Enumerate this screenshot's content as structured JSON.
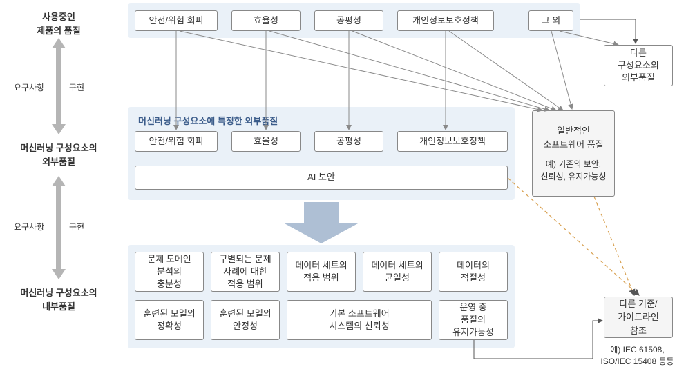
{
  "colors": {
    "panel_bg": "#eaf1f8",
    "panel_title": "#3b5c8a",
    "box_border": "#888888",
    "box_bg": "#ffffff",
    "right_bg": "#f5f5f5",
    "arrow_gray": "#b5b5b5",
    "wire_gray": "#8a8a8a",
    "orange_dash": "#d8a050",
    "dark_line": "#0a2a4a",
    "text": "#333333",
    "big_arrow_fill": "#aebfd4"
  },
  "layerLabels": {
    "top": "사용중인\n제품의 품질",
    "mid": "머신러닝 구성요소의\n외부품질",
    "bot": "머신러닝 구성요소의\n내부품질"
  },
  "bidir": {
    "req": "요구사항",
    "impl": "구현"
  },
  "topRow": {
    "a": "안전/위험 회피",
    "b": "효율성",
    "c": "공평성",
    "d": "개인정보보호정책",
    "e": "그 외"
  },
  "midPanel": {
    "title": "머신러닝 구성요소에 특정한 외부품질",
    "a": "안전/위험 회피",
    "b": "효율성",
    "c": "공평성",
    "d": "개인정보보호정책",
    "full": "AI 보안"
  },
  "botPanel": {
    "r1c1": "문제 도메인\n분석의\n충분성",
    "r1c2": "구별되는 문제\n사례에 대한\n적용 범위",
    "r1c3": "데이터 세트의\n적용 범위",
    "r1c4": "데이터 세트의\n균일성",
    "r1c5": "데이터의\n적절성",
    "r2c1": "훈련된 모델의\n정확성",
    "r2c2": "훈련된 모델의\n안정성",
    "r2c3": "기본 소프트웨어\n시스템의 신뢰성",
    "r2c4": "운영 중\n품질의\n유지가능성"
  },
  "right": {
    "ext": "다른\n구성요소의\n외부품질",
    "sw_main": "일반적인\n소프트웨어 품질",
    "sw_sub": "예) 기존의 보안,\n신뢰성, 유지가능성",
    "guide": "다른 기준/\n가이드라인\n참조",
    "caption": "예) IEC 61508,\nISO/IEC 15408 등등"
  }
}
